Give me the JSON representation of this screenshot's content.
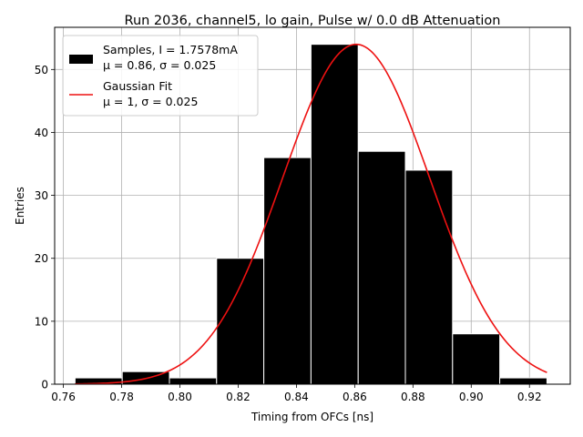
{
  "chart_data": {
    "type": "bar",
    "title": "Run 2036, channel5, lo gain, Pulse w/ 0.0 dB Attenuation",
    "xlabel": "Timing from OFCs [ns]",
    "ylabel": "Entries",
    "xlim": [
      0.757,
      0.934
    ],
    "ylim": [
      0,
      56.7
    ],
    "xticks": [
      0.76,
      0.78,
      0.8,
      0.82,
      0.84,
      0.86,
      0.88,
      0.9,
      0.92
    ],
    "xtick_labels": [
      "0.76",
      "0.78",
      "0.80",
      "0.82",
      "0.84",
      "0.86",
      "0.88",
      "0.90",
      "0.92"
    ],
    "yticks": [
      0,
      10,
      20,
      30,
      40,
      50
    ],
    "ytick_labels": [
      "0",
      "10",
      "20",
      "30",
      "40",
      "50"
    ],
    "grid": true,
    "legend_placement": "upper-left",
    "histogram": {
      "name_line1": "Samples, I = 1.7578mA",
      "name_line2": "μ = 0.86, σ = 0.025",
      "color": "#000000",
      "edgecolor": "#ffffff",
      "bin_edges": [
        0.764,
        0.7802,
        0.7964,
        0.8126,
        0.8288,
        0.845,
        0.8612,
        0.8774,
        0.8936,
        0.9098,
        0.926
      ],
      "counts": [
        1,
        2,
        1,
        20,
        36,
        54,
        37,
        34,
        8,
        1
      ]
    },
    "fit": {
      "name_line1": "Gaussian Fit",
      "name_line2": "μ = 1, σ = 0.025",
      "color": "#ee1111",
      "amplitude": 54,
      "mu": 0.8605,
      "sigma": 0.02525,
      "x_range": [
        0.764,
        0.926
      ]
    }
  }
}
